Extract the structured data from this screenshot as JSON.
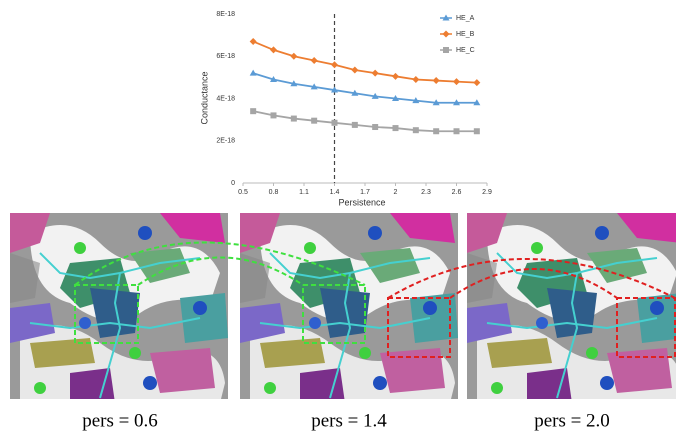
{
  "chart_data": {
    "type": "line",
    "x_label": "Persistence",
    "y_label": "Conductance",
    "x": [
      0.6,
      0.8,
      1.0,
      1.2,
      1.4,
      1.6,
      1.8,
      2.0,
      2.2,
      2.4,
      2.6,
      2.8
    ],
    "series": [
      {
        "name": "HE_A",
        "color": "#5b9bd5",
        "marker": "triangle",
        "values": [
          5.2e-18,
          4.9e-18,
          4.7e-18,
          4.55e-18,
          4.4e-18,
          4.25e-18,
          4.1e-18,
          4e-18,
          3.9e-18,
          3.8e-18,
          3.8e-18,
          3.8e-18
        ]
      },
      {
        "name": "HE_B",
        "color": "#ed7d31",
        "marker": "diamond",
        "values": [
          6.7e-18,
          6.3e-18,
          6e-18,
          5.8e-18,
          5.6e-18,
          5.35e-18,
          5.2e-18,
          5.05e-18,
          4.9e-18,
          4.85e-18,
          4.8e-18,
          4.75e-18
        ]
      },
      {
        "name": "HE_C",
        "color": "#a5a5a5",
        "marker": "square",
        "values": [
          3.4e-18,
          3.2e-18,
          3.05e-18,
          2.95e-18,
          2.85e-18,
          2.75e-18,
          2.65e-18,
          2.6e-18,
          2.5e-18,
          2.45e-18,
          2.45e-18,
          2.45e-18
        ]
      }
    ],
    "xlim": [
      0.5,
      2.9
    ],
    "xticks": [
      0.5,
      0.8,
      1.1,
      1.4,
      1.7,
      2,
      2.3,
      2.6,
      2.9
    ],
    "ylim": [
      0,
      8e-18
    ],
    "yticks": [
      0,
      {
        "value": 2e-18,
        "label": "2E-18"
      },
      {
        "value": 4e-18,
        "label": "4E-18"
      },
      {
        "value": 6e-18,
        "label": "6E-18"
      },
      {
        "value": 8e-18,
        "label": "8E-18"
      }
    ],
    "vline": 1.4,
    "legend": "top-right"
  },
  "panels": [
    {
      "caption": "pers = 0.6"
    },
    {
      "caption": "pers = 1.4"
    },
    {
      "caption": "pers = 2.0"
    }
  ]
}
